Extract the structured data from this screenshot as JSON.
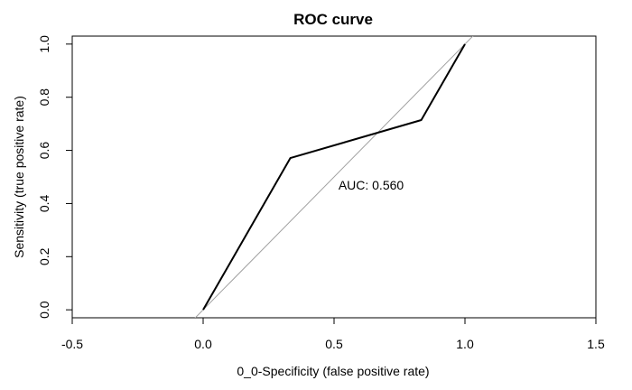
{
  "chart_data": {
    "type": "line",
    "title": "ROC curve",
    "xlabel": "0_0-Specificity (false positive rate)",
    "ylabel": "Sensitivity (true positive rate)",
    "xlim": [
      -0.5,
      1.5
    ],
    "ylim": [
      -0.03,
      1.03
    ],
    "x_ticks": [
      -0.5,
      0.0,
      0.5,
      1.0,
      1.5
    ],
    "y_ticks": [
      0.0,
      0.2,
      0.4,
      0.6,
      0.8,
      1.0
    ],
    "x_tick_labels": [
      "-0.5",
      "0.0",
      "0.5",
      "1.0",
      "1.5"
    ],
    "y_tick_labels": [
      "0.0",
      "0.2",
      "0.4",
      "0.6",
      "0.8",
      "1.0"
    ],
    "grid": false,
    "legend": "none",
    "series": [
      {
        "x": [
          0.0,
          0.333,
          0.833,
          1.0
        ],
        "y": [
          0.0,
          0.571,
          0.714,
          1.0
        ],
        "color": "#000000"
      }
    ],
    "reference_line": {
      "x": [
        -0.1,
        1.1
      ],
      "y": [
        -0.1,
        1.1
      ],
      "color": "#a0a0a0"
    },
    "annotations": [
      {
        "text": "AUC: 0.560",
        "x": 0.5,
        "y": 0.47
      }
    ]
  }
}
